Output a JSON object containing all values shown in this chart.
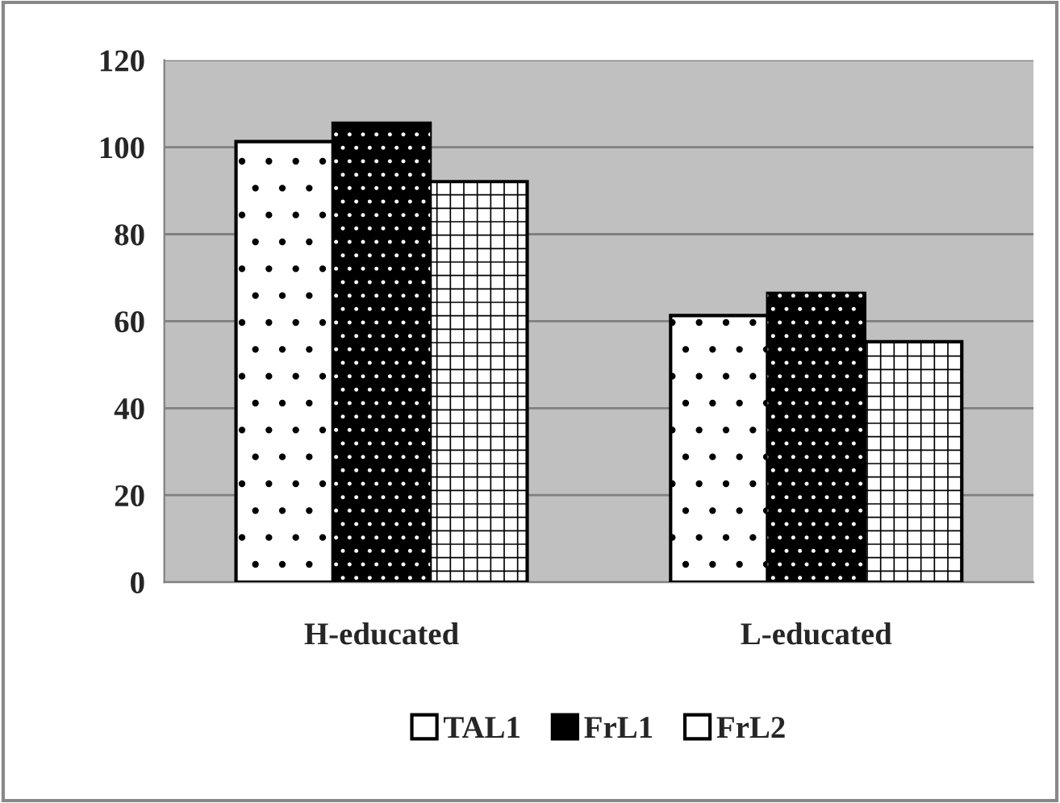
{
  "chart_data": {
    "type": "bar",
    "categories": [
      "H-educated",
      "L-educated"
    ],
    "series": [
      {
        "name": "TAL1",
        "color": "#ffffff",
        "values": [
          101.3,
          61.3
        ]
      },
      {
        "name": "FrL1",
        "color": "#000000",
        "values": [
          105.5,
          66.4
        ]
      },
      {
        "name": "FrL2",
        "color": "#ffffff",
        "values": [
          92.1,
          55.3
        ]
      }
    ],
    "ylim": [
      0,
      120
    ],
    "yticks": [
      0,
      20,
      40,
      60,
      80,
      100,
      120
    ],
    "grid": "y",
    "legend": "bottom"
  }
}
